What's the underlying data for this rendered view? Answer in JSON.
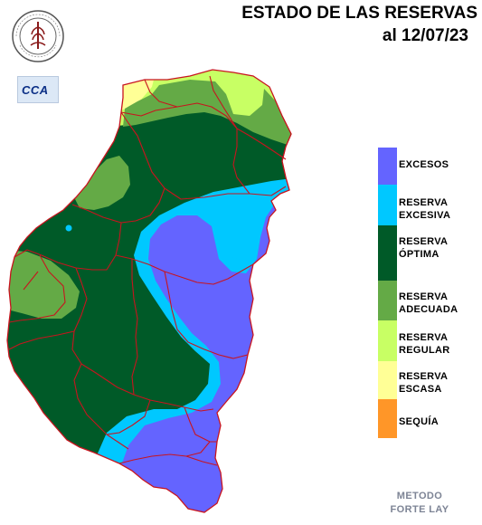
{
  "header": {
    "title": "ESTADO DE LAS RESERVAS",
    "date_line": "al 12/07/23"
  },
  "logos": {
    "bolsa": {
      "icon": "bolsa-de-cereales-seal-icon",
      "lettering": "BOLSA DE CEREALES DE ENTRE RIOS"
    },
    "cca": {
      "text": "CCA"
    }
  },
  "legend": [
    {
      "line1": "EXCESOS",
      "line2": "",
      "color": "#6464ff"
    },
    {
      "line1": "RESERVA",
      "line2": "EXCESIVA",
      "color": "#00c8ff"
    },
    {
      "line1": "RESERVA",
      "line2": "ÓPTIMA",
      "color": "#005a28"
    },
    {
      "line1": "RESERVA",
      "line2": "ADECUADA",
      "color": "#64aa46"
    },
    {
      "line1": "RESERVA",
      "line2": "REGULAR",
      "color": "#c8ff64"
    },
    {
      "line1": "RESERVA",
      "line2": "ESCASA",
      "color": "#ffff96"
    },
    {
      "line1": "SEQUÍA",
      "line2": "",
      "color": "#ff9628"
    }
  ],
  "footer": {
    "method_line1": "METODO",
    "method_line2": "FORTE LAY"
  },
  "colors": {
    "department_border": "#c8141e",
    "background": "#ffffff"
  }
}
